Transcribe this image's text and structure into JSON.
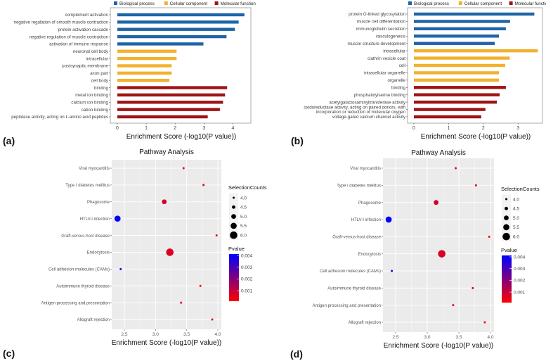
{
  "chart_data": [
    {
      "panel": "(a)",
      "type": "bar",
      "orientation": "horizontal",
      "xlabel": "Enrichment Score (-log10(P value))",
      "xlim": [
        0,
        4.5
      ],
      "xticks": [
        0,
        1,
        2,
        3,
        4
      ],
      "legend": {
        "position": "top",
        "entries": [
          {
            "name": "Biological process",
            "color": "#1f65a8"
          },
          {
            "name": "Cellular component",
            "color": "#f2b12e"
          },
          {
            "name": "Molecular function",
            "color": "#9e1414"
          }
        ]
      },
      "categories": [
        "complement activation",
        "negative regulation of smooth muscle contraction",
        "protein activation cascade",
        "negative regulation of muscle contraction",
        "activation of immune response",
        "neuronal cell body",
        "intracellular",
        "postsynaptic membrane",
        "axon part",
        "cell body",
        "binding",
        "metal ion binding",
        "calcium ion binding",
        "cation binding",
        "peptidase activity, acting on L-amino acid peptides"
      ],
      "groups": [
        0,
        0,
        0,
        0,
        0,
        1,
        1,
        1,
        1,
        1,
        2,
        2,
        2,
        2,
        2
      ],
      "values": [
        4.4,
        4.2,
        4.07,
        3.78,
        2.98,
        2.05,
        2.05,
        1.88,
        1.88,
        1.8,
        3.8,
        3.73,
        3.66,
        3.55,
        3.13
      ]
    },
    {
      "panel": "(b)",
      "type": "bar",
      "orientation": "horizontal",
      "xlabel": "Enrichment Score (-log10(P value))",
      "xlim": [
        0,
        3.7
      ],
      "xticks": [
        0,
        1,
        2,
        3
      ],
      "legend": {
        "position": "top",
        "entries": [
          {
            "name": "Biological process",
            "color": "#1f65a8"
          },
          {
            "name": "Cellular component",
            "color": "#f2b12e"
          },
          {
            "name": "Molecular function",
            "color": "#9e1414"
          }
        ]
      },
      "categories": [
        "protein O-linked glycosylation",
        "muscle cell differentiation",
        "immunoglobulin secretion",
        "vasculogenesis",
        "muscle structure development",
        "intracellular",
        "clathrin vesicle coat",
        "cell",
        "intracellular organelle",
        "organelle",
        "binding",
        "phosphatidylserine binding",
        "acetylgalactosaminyltransferase activity",
        "oxidoreductase activity, acting on paired donors, with\nincorporation or reduction of molecular oxygen",
        "voltage-gated calcium channel activity"
      ],
      "groups": [
        0,
        0,
        0,
        0,
        0,
        1,
        1,
        1,
        1,
        1,
        2,
        2,
        2,
        2,
        2
      ],
      "values": [
        3.47,
        2.77,
        2.65,
        2.45,
        2.33,
        3.57,
        2.76,
        2.63,
        2.45,
        2.45,
        2.65,
        2.47,
        2.39,
        2.06,
        1.94
      ]
    },
    {
      "panel": "(c)",
      "type": "scatter",
      "title": "Pathway Analysis",
      "xlabel": "Enrichment Score (-log10(P value))",
      "xlim": [
        2.3,
        4.06
      ],
      "xticks": [
        2.5,
        3.0,
        3.5,
        4.0
      ],
      "xtick_labels": [
        "2.5",
        "3.0",
        "3.5",
        "4.0"
      ],
      "categories": [
        "Viral myocarditis",
        "Type I diabetes mellitus",
        "Phagosome",
        "HTLV-I infection",
        "Graft-versus-host disease",
        "Endocytosis",
        "Cell adhesion molecules (CAMs)",
        "Autoimmune thyroid disease",
        "Antigen processing and presentation",
        "Allograft rejection"
      ],
      "x": [
        3.45,
        3.77,
        3.14,
        2.39,
        3.98,
        3.23,
        2.44,
        3.72,
        3.41,
        3.91
      ],
      "size": [
        4,
        4,
        5,
        5.5,
        4,
        6,
        4,
        4,
        4,
        4
      ],
      "pvalue": [
        0.0004,
        0.0002,
        0.0007,
        0.0041,
        0.0001,
        0.0006,
        0.0036,
        0.0002,
        0.0004,
        0.0001
      ],
      "size_legend": {
        "title": "SelectionCounts",
        "values": [
          "4.0",
          "4.5",
          "5.0",
          "5.5",
          "6.0"
        ]
      },
      "color_legend": {
        "title": "Pvalue",
        "labels": [
          "0.004",
          "0.003",
          "0.002",
          "0.001"
        ],
        "low_color": "#ff0000",
        "high_color": "#0000ff"
      }
    },
    {
      "panel": "(d)",
      "type": "scatter",
      "title": "Pathway Analysis",
      "xlabel": "Enrichment Score (-log10(P value))",
      "xlim": [
        2.3,
        4.06
      ],
      "xticks": [
        2.5,
        3.0,
        3.5,
        4.0
      ],
      "xtick_labels": [
        "2.5",
        "3.0",
        "3.5",
        "4.0"
      ],
      "categories": [
        "Viral myocarditis",
        "Type I diabetes mellitus",
        "Phagosome",
        "HTLV-I infection",
        "Graft-versus-host disease",
        "Endocytosis",
        "Cell adhesion molecules (CAMs)",
        "Autoimmune thyroid disease",
        "Antigen processing and presentation",
        "Allograft rejection"
      ],
      "x": [
        3.45,
        3.77,
        3.14,
        2.39,
        3.98,
        3.23,
        2.44,
        3.72,
        3.41,
        3.91
      ],
      "size": [
        4,
        4,
        5,
        5.5,
        4,
        6,
        4,
        4,
        4,
        4
      ],
      "pvalue": [
        0.0004,
        0.0002,
        0.0007,
        0.0041,
        0.0001,
        0.0006,
        0.0036,
        0.0002,
        0.0004,
        0.0001
      ],
      "size_legend": {
        "title": "SelectionCounts",
        "values": [
          "4.0",
          "4.5",
          "5.0",
          "5.5",
          "6.0"
        ]
      },
      "color_legend": {
        "title": "Pvalue",
        "labels": [
          "0.004",
          "0.003",
          "0.002",
          "0.001"
        ],
        "low_color": "#ff0000",
        "high_color": "#0000ff"
      }
    }
  ]
}
